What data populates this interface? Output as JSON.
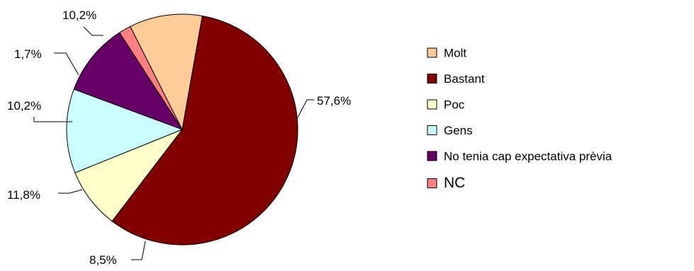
{
  "chart_data": {
    "type": "pie",
    "title": "",
    "slices": [
      {
        "name": "Molt",
        "value": 10.2,
        "label": "10,2%",
        "color": "#FFCC99"
      },
      {
        "name": "Bastant",
        "value": 57.6,
        "label": "57,6%",
        "color": "#800000"
      },
      {
        "name": "Poc",
        "value": 8.5,
        "label": "8,5%",
        "color": "#FFFFCC"
      },
      {
        "name": "Gens",
        "value": 11.8,
        "label": "11,8%",
        "color": "#CCFFFF"
      },
      {
        "name": "No tenia cap expectativa prèvia",
        "value": 10.2,
        "label": "10,2%",
        "color": "#660066"
      },
      {
        "name": "NC",
        "value": 1.7,
        "label": "1,7%",
        "color": "#FF8080"
      }
    ],
    "legend_position": "right",
    "start_angle_deg": -80
  },
  "colors": {
    "outline": "#000000",
    "background": "#ffffff"
  }
}
